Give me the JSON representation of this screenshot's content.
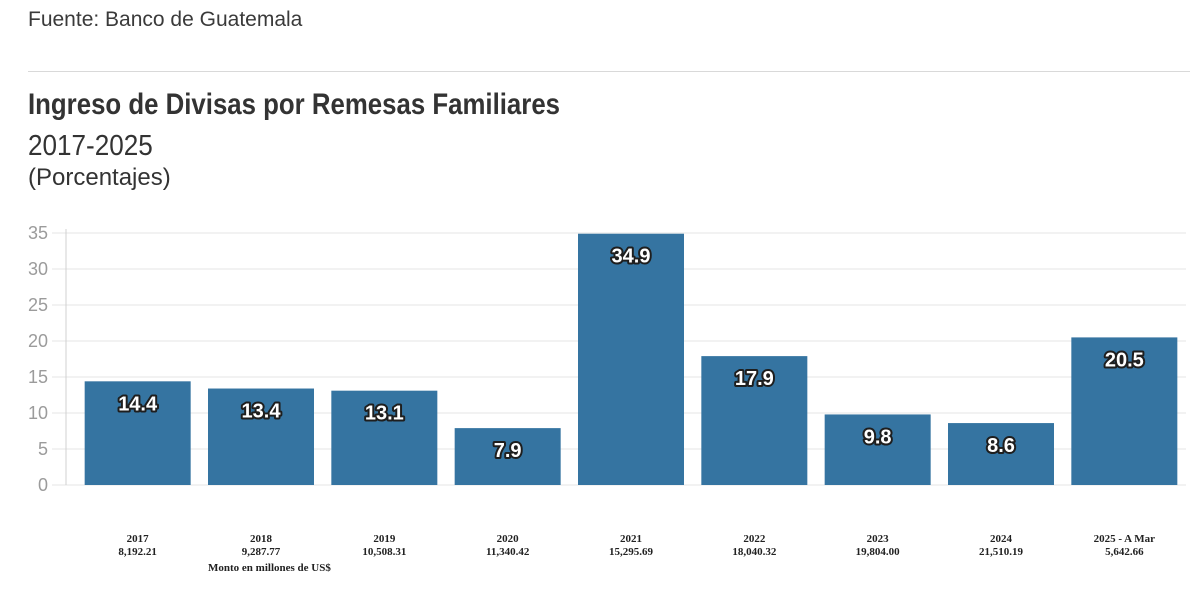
{
  "header": {
    "source": "Fuente: Banco de Guatemala",
    "title": "Ingreso de Divisas por Remesas Familiares",
    "subtitle": "2017-2025",
    "units": "(Porcentajes)"
  },
  "footnote": "Monto en millones de US$",
  "colors": {
    "bar": "#2e6f9e",
    "grid": "#e6e6e6",
    "tick": "#9b9b9b"
  },
  "chart_data": {
    "type": "bar",
    "title": "Ingreso de Divisas por Remesas Familiares",
    "subtitle": "2017-2025 (Porcentajes)",
    "categories": [
      "2017",
      "2018",
      "2019",
      "2020",
      "2021",
      "2022",
      "2023",
      "2024",
      "2025 - A Mar"
    ],
    "amounts": [
      "8,192.21",
      "9,287.77",
      "10,508.31",
      "11,340.42",
      "15,295.69",
      "18,040.32",
      "19,804.00",
      "21,510.19",
      "5,642.66"
    ],
    "values": [
      14.4,
      13.4,
      13.1,
      7.9,
      34.9,
      17.9,
      9.8,
      8.6,
      20.5
    ],
    "labels": [
      "14.4",
      "13.4",
      "13.1",
      "7.9",
      "34.9",
      "17.9",
      "9.8",
      "8.6",
      "20.5"
    ],
    "ylim": [
      0,
      35
    ],
    "yticks": [
      0,
      5,
      10,
      15,
      20,
      25,
      30,
      35
    ],
    "xlabel": "Monto en millones de US$",
    "ylabel": "",
    "grid": true,
    "legend": "none"
  }
}
